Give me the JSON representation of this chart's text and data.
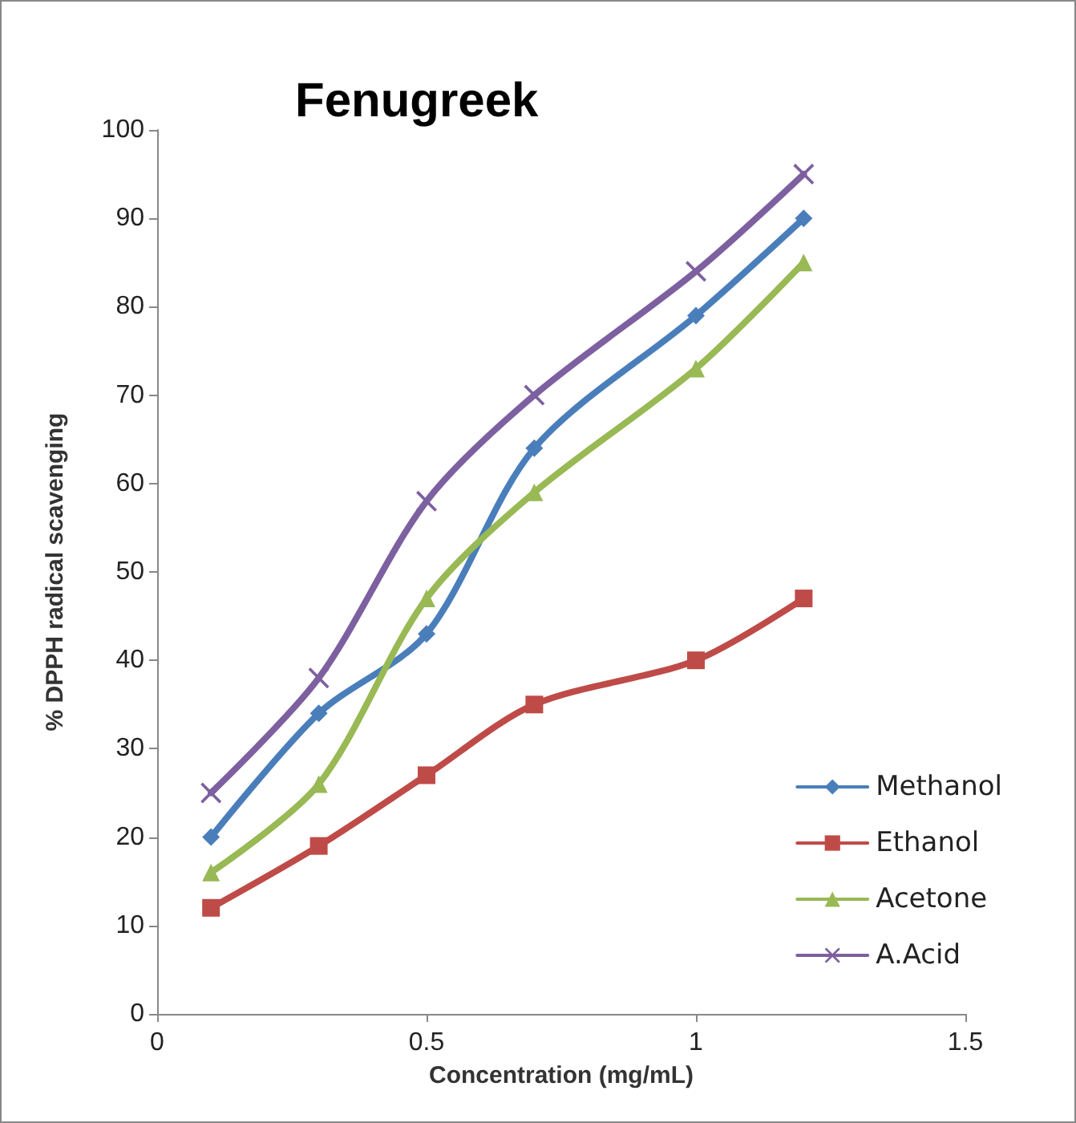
{
  "chart_data": {
    "type": "line",
    "title": "Fenugreek",
    "xlabel": "Concentration (mg/mL)",
    "ylabel": "% DPPH radical scavenging",
    "x": [
      0.1,
      0.3,
      0.5,
      0.7,
      1.0,
      1.2
    ],
    "series": [
      {
        "name": "Methanol",
        "color": "#4a7ebb",
        "marker": "diamond",
        "values": [
          20,
          34,
          43,
          64,
          79,
          90
        ]
      },
      {
        "name": "Ethanol",
        "color": "#be4b48",
        "marker": "square",
        "values": [
          12,
          19,
          27,
          35,
          40,
          47
        ]
      },
      {
        "name": "Acetone",
        "color": "#98b954",
        "marker": "triangle",
        "values": [
          16,
          26,
          47,
          59,
          73,
          85
        ]
      },
      {
        "name": "A.Acid",
        "color": "#7d60a0",
        "marker": "cross",
        "values": [
          25,
          38,
          58,
          70,
          84,
          95
        ]
      }
    ],
    "xlim": [
      0,
      1.5
    ],
    "xticks": [
      0,
      0.5,
      1,
      1.5
    ],
    "ylim": [
      0,
      100
    ],
    "yticks": [
      0,
      10,
      20,
      30,
      40,
      50,
      60,
      70,
      80,
      90,
      100
    ],
    "grid": false,
    "legend": "bottom right",
    "line_style": "solid"
  }
}
